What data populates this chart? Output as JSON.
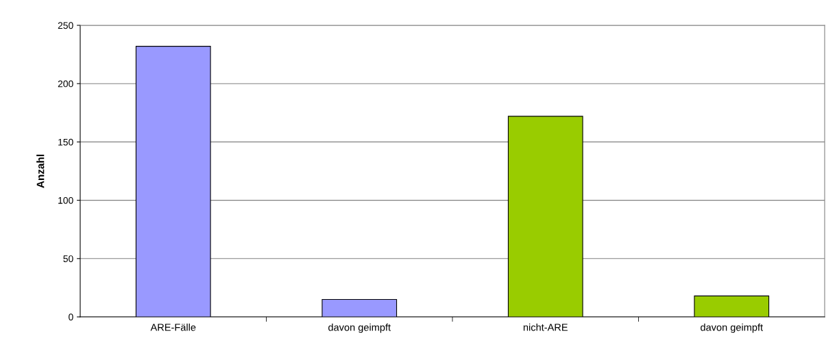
{
  "chart_data": {
    "type": "bar",
    "ylabel": "Anzahl",
    "categories": [
      "ARE-Fälle",
      "davon geimpft",
      "nicht-ARE",
      "davon geimpft"
    ],
    "values": [
      232,
      15,
      172,
      18
    ],
    "colors": [
      "#9999ff",
      "#9999ff",
      "#99cc00",
      "#99cc00"
    ],
    "ylim": [
      0,
      250
    ],
    "yticks": [
      0,
      50,
      100,
      150,
      200,
      250
    ],
    "grid": "y",
    "legend": false
  }
}
